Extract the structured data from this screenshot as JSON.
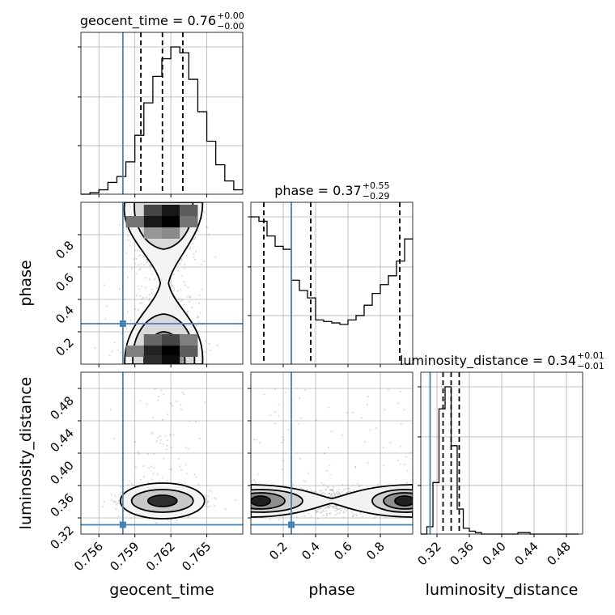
{
  "chart_data": {
    "type": "corner",
    "truth_color": "#4682b4",
    "params": [
      {
        "key": "geocent_time",
        "label": "geocent_time",
        "title_main": "geocent_time = 0.76",
        "title_plus": "+0.00",
        "title_minus": "−0.00",
        "range": [
          0.7545,
          0.768
        ],
        "ticks": [
          0.756,
          0.759,
          0.762,
          0.765
        ],
        "tick_labels": [
          "0.756",
          "0.759",
          "0.762",
          "0.765"
        ],
        "truth": 0.758,
        "quantiles": [
          0.7595,
          0.7613,
          0.763
        ],
        "hist_bin_start": 0.7545,
        "hist_bin_width": 0.00075,
        "hist": [
          0,
          1,
          3,
          8,
          12,
          22,
          40,
          62,
          80,
          92,
          100,
          96,
          78,
          56,
          36,
          20,
          9,
          3
        ]
      },
      {
        "key": "phase",
        "label": "phase",
        "title_main": "phase = 0.37",
        "title_plus": "+0.55",
        "title_minus": "−0.29",
        "range": [
          0.0,
          1.0
        ],
        "ticks": [
          0.2,
          0.4,
          0.6,
          0.8
        ],
        "tick_labels": [
          "0.2",
          "0.4",
          "0.6",
          "0.8"
        ],
        "truth": 0.25,
        "quantiles": [
          0.08,
          0.37,
          0.92
        ],
        "hist_bin_start": 0.0,
        "hist_bin_width": 0.05,
        "hist": [
          100,
          97,
          87,
          80,
          78,
          57,
          50,
          45,
          30,
          29,
          28,
          27,
          30,
          33,
          40,
          48,
          54,
          60,
          70,
          85
        ]
      },
      {
        "key": "luminosity_distance",
        "label": "luminosity_distance",
        "title_main": "luminosity_distance = 0.34",
        "title_plus": "+0.01",
        "title_minus": "−0.01",
        "range": [
          0.3,
          0.5
        ],
        "ticks": [
          0.32,
          0.36,
          0.4,
          0.44,
          0.48
        ],
        "tick_labels": [
          "0.32",
          "0.36",
          "0.40",
          "0.44",
          "0.48"
        ],
        "truth": 0.3115,
        "quantiles": [
          0.3275,
          0.3375,
          0.3475
        ],
        "hist_bin_start": 0.3,
        "hist_bin_width": 0.0075,
        "hist": [
          0,
          5,
          35,
          85,
          100,
          60,
          17,
          4,
          2,
          1,
          0,
          0,
          0,
          0,
          0,
          0,
          1,
          1,
          0,
          0,
          0,
          0,
          0,
          0,
          0,
          0
        ]
      }
    ],
    "pairs": [
      {
        "x": "geocent_time",
        "y": "phase",
        "density_cells": [
          [
            0.7605,
            0.95,
            0.7,
            0.762,
            0.95,
            0.9,
            0.7635,
            0.95,
            0.6,
            0.759,
            0.88,
            0.5,
            0.7605,
            0.88,
            0.9,
            0.762,
            0.88,
            1.0,
            0.7635,
            0.88,
            0.5,
            0.7605,
            0.81,
            0.35,
            0.762,
            0.81,
            0.4
          ],
          [
            0.7605,
            0.15,
            0.55,
            0.762,
            0.15,
            0.7,
            0.7635,
            0.15,
            0.45,
            0.759,
            0.08,
            0.45,
            0.7605,
            0.08,
            0.85,
            0.762,
            0.08,
            1.0,
            0.7635,
            0.08,
            0.6,
            0.7605,
            0.02,
            0.8,
            0.762,
            0.02,
            0.95
          ]
        ]
      },
      {
        "x": "geocent_time",
        "y": "luminosity_distance"
      },
      {
        "x": "phase",
        "y": "luminosity_distance"
      }
    ]
  }
}
